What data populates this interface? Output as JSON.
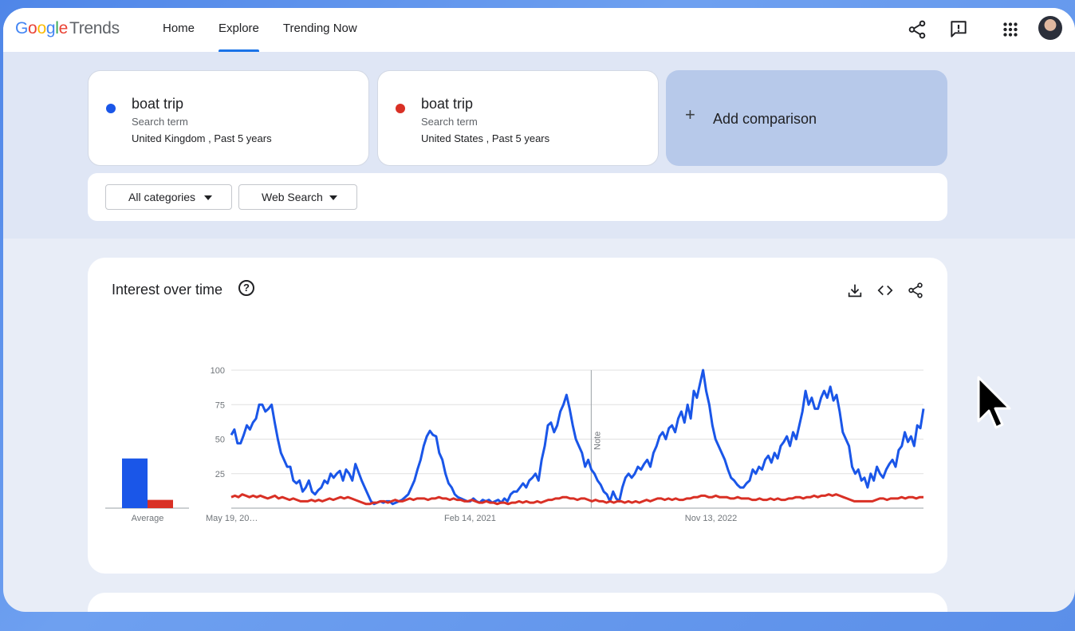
{
  "app": {
    "logo_google": "Google",
    "logo_trends": "Trends"
  },
  "nav": {
    "items": [
      {
        "label": "Home"
      },
      {
        "label": "Explore",
        "active": true
      },
      {
        "label": "Trending Now"
      }
    ]
  },
  "toolbar_icons": [
    "share-icon",
    "feedback-icon",
    "apps-grid-icon",
    "account-avatar"
  ],
  "terms": [
    {
      "name": "boat trip",
      "type": "Search term",
      "location": "United Kingdom , Past 5 years",
      "color": "#1a56e8"
    },
    {
      "name": "boat trip",
      "type": "Search term",
      "location": "United States , Past 5 years",
      "color": "#d93025"
    }
  ],
  "add_comparison": {
    "label": "Add comparison"
  },
  "filters": {
    "category": "All categories",
    "search_type": "Web Search"
  },
  "chart_card": {
    "title": "Interest over time",
    "help": "?",
    "average_label": "Average",
    "note_label": "Note"
  },
  "chart_data": {
    "type": "line",
    "x_tick_labels": [
      "May 19, 20…",
      "Feb 14, 2021",
      "Nov 13, 2022"
    ],
    "ylim": [
      0,
      100
    ],
    "y_ticks": [
      25,
      50,
      75,
      100
    ],
    "grid": true,
    "note_marker_x_fraction": 0.52,
    "series": [
      {
        "name": "boat trip",
        "color": "#1a56e8",
        "average": 36,
        "values": [
          53,
          57,
          47,
          47,
          53,
          60,
          57,
          62,
          65,
          75,
          75,
          70,
          72,
          75,
          62,
          50,
          40,
          35,
          30,
          30,
          20,
          18,
          20,
          12,
          15,
          20,
          12,
          10,
          13,
          15,
          20,
          18,
          25,
          22,
          25,
          27,
          20,
          28,
          25,
          20,
          32,
          26,
          20,
          15,
          10,
          5,
          3,
          4,
          5,
          4,
          5,
          5,
          3,
          4,
          5,
          6,
          8,
          10,
          15,
          20,
          28,
          35,
          45,
          52,
          56,
          53,
          52,
          40,
          35,
          25,
          18,
          15,
          10,
          8,
          7,
          6,
          5,
          5,
          7,
          5,
          4,
          6,
          5,
          6,
          4,
          5,
          6,
          4,
          7,
          5,
          10,
          12,
          12,
          15,
          18,
          15,
          20,
          22,
          25,
          20,
          35,
          45,
          60,
          62,
          55,
          60,
          70,
          75,
          82,
          72,
          60,
          50,
          45,
          40,
          30,
          35,
          28,
          25,
          20,
          17,
          12,
          10,
          5,
          12,
          7,
          5,
          15,
          22,
          25,
          22,
          25,
          30,
          28,
          32,
          35,
          30,
          40,
          45,
          52,
          55,
          50,
          58,
          60,
          55,
          65,
          70,
          62,
          75,
          65,
          85,
          80,
          90,
          100,
          85,
          75,
          60,
          50,
          45,
          40,
          35,
          28,
          22,
          20,
          17,
          15,
          15,
          18,
          20,
          28,
          25,
          30,
          28,
          35,
          38,
          33,
          40,
          36,
          45,
          48,
          52,
          45,
          55,
          50,
          60,
          70,
          85,
          75,
          80,
          72,
          72,
          80,
          85,
          80,
          88,
          78,
          82,
          70,
          55,
          50,
          45,
          30,
          25,
          28,
          20,
          22,
          15,
          25,
          20,
          30,
          25,
          22,
          28,
          32,
          35,
          30,
          42,
          45,
          55,
          48,
          52,
          45,
          60,
          58,
          72
        ]
      },
      {
        "name": "boat trip",
        "color": "#d93025",
        "average": 6,
        "values": [
          8,
          9,
          8,
          10,
          9,
          8,
          9,
          8,
          9,
          8,
          7,
          8,
          9,
          7,
          8,
          7,
          6,
          7,
          6,
          5,
          5,
          5,
          6,
          5,
          6,
          5,
          6,
          7,
          6,
          7,
          8,
          7,
          8,
          7,
          6,
          5,
          4,
          3,
          3,
          4,
          4,
          5,
          5,
          4,
          5,
          6,
          5,
          5,
          6,
          7,
          6,
          7,
          7,
          7,
          6,
          7,
          7,
          8,
          7,
          7,
          6,
          7,
          6,
          6,
          5,
          5,
          6,
          5,
          4,
          4,
          5,
          4,
          4,
          3,
          4,
          4,
          3,
          4,
          4,
          5,
          4,
          5,
          4,
          4,
          5,
          4,
          5,
          6,
          6,
          7,
          7,
          8,
          8,
          7,
          7,
          6,
          7,
          7,
          6,
          5,
          6,
          5,
          5,
          4,
          5,
          4,
          5,
          5,
          4,
          5,
          4,
          5,
          4,
          5,
          6,
          5,
          6,
          7,
          7,
          6,
          7,
          6,
          7,
          6,
          6,
          7,
          7,
          8,
          8,
          9,
          9,
          8,
          8,
          9,
          8,
          8,
          8,
          7,
          7,
          8,
          7,
          7,
          7,
          6,
          6,
          7,
          6,
          6,
          7,
          6,
          7,
          6,
          6,
          7,
          7,
          8,
          8,
          7,
          8,
          8,
          9,
          8,
          9,
          9,
          10,
          9,
          10,
          9,
          8,
          7,
          6,
          5,
          5,
          5,
          5,
          5,
          5,
          6,
          7,
          7,
          6,
          7,
          7,
          7,
          8,
          7,
          8,
          8,
          7,
          8,
          8
        ]
      }
    ]
  }
}
